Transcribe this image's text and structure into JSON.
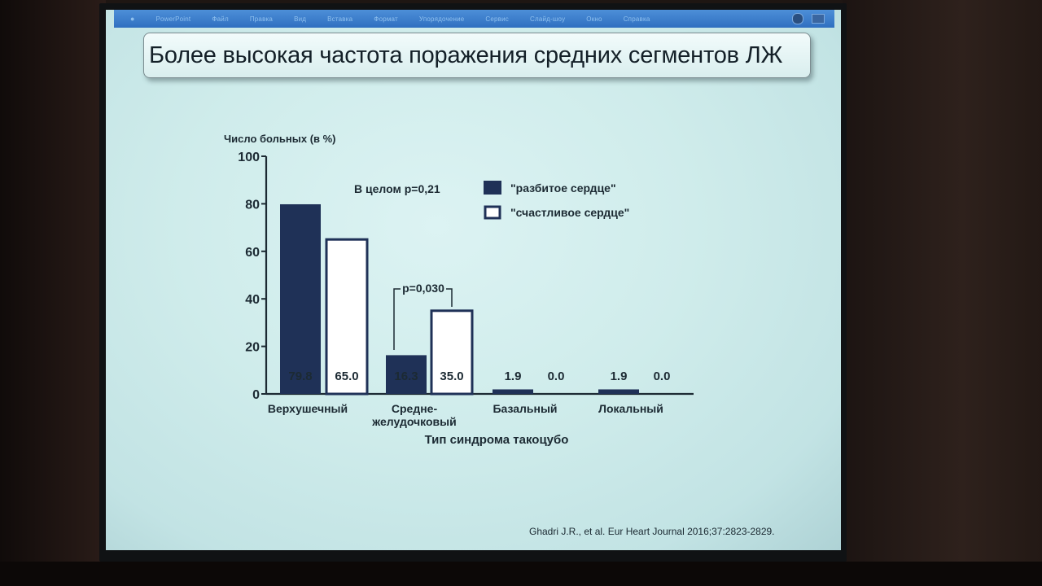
{
  "menubar": {
    "items": [
      "PowerPoint",
      "Файл",
      "Правка",
      "Вид",
      "Вставка",
      "Формат",
      "Упорядочение",
      "Сервис",
      "Слайд-шоу",
      "Окно",
      "Справка"
    ]
  },
  "slide": {
    "title": "Более высокая частота поражения средних сегментов ЛЖ",
    "citation": "Ghadri J.R., et al. Eur Heart Journal 2016;37:2823-2829."
  },
  "chart_data": {
    "type": "bar",
    "ylabel": "Число больных (в %)",
    "xlabel": "Тип синдрома такоцубо",
    "ylim": [
      0,
      100
    ],
    "yticks": [
      "0",
      "20",
      "40",
      "60",
      "80",
      "100"
    ],
    "categories": [
      "Верхушечный",
      "Средне-\nжелудочковый",
      "Базальный",
      "Локальный"
    ],
    "category_lines": [
      [
        "Верхушечный"
      ],
      [
        "Средне-",
        "желудочковый"
      ],
      [
        "Базальный"
      ],
      [
        "Локальный"
      ]
    ],
    "series": [
      {
        "name": "\"разбитое сердце\"",
        "fill": "#1f3157",
        "values": [
          79.8,
          16.3,
          1.9,
          1.9
        ],
        "labels": [
          "79.8",
          "16.3",
          "1.9",
          "1.9"
        ]
      },
      {
        "name": "\"счастливое сердце\"",
        "fill": "#ffffff",
        "values": [
          65.0,
          35.0,
          0.0,
          0.0
        ],
        "labels": [
          "65.0",
          "35.0",
          "0.0",
          "0.0"
        ]
      }
    ],
    "annotations": {
      "overall": "В целом р=0,21",
      "pair": "р=0,030"
    },
    "legend_position": "top-right",
    "grid": false
  }
}
